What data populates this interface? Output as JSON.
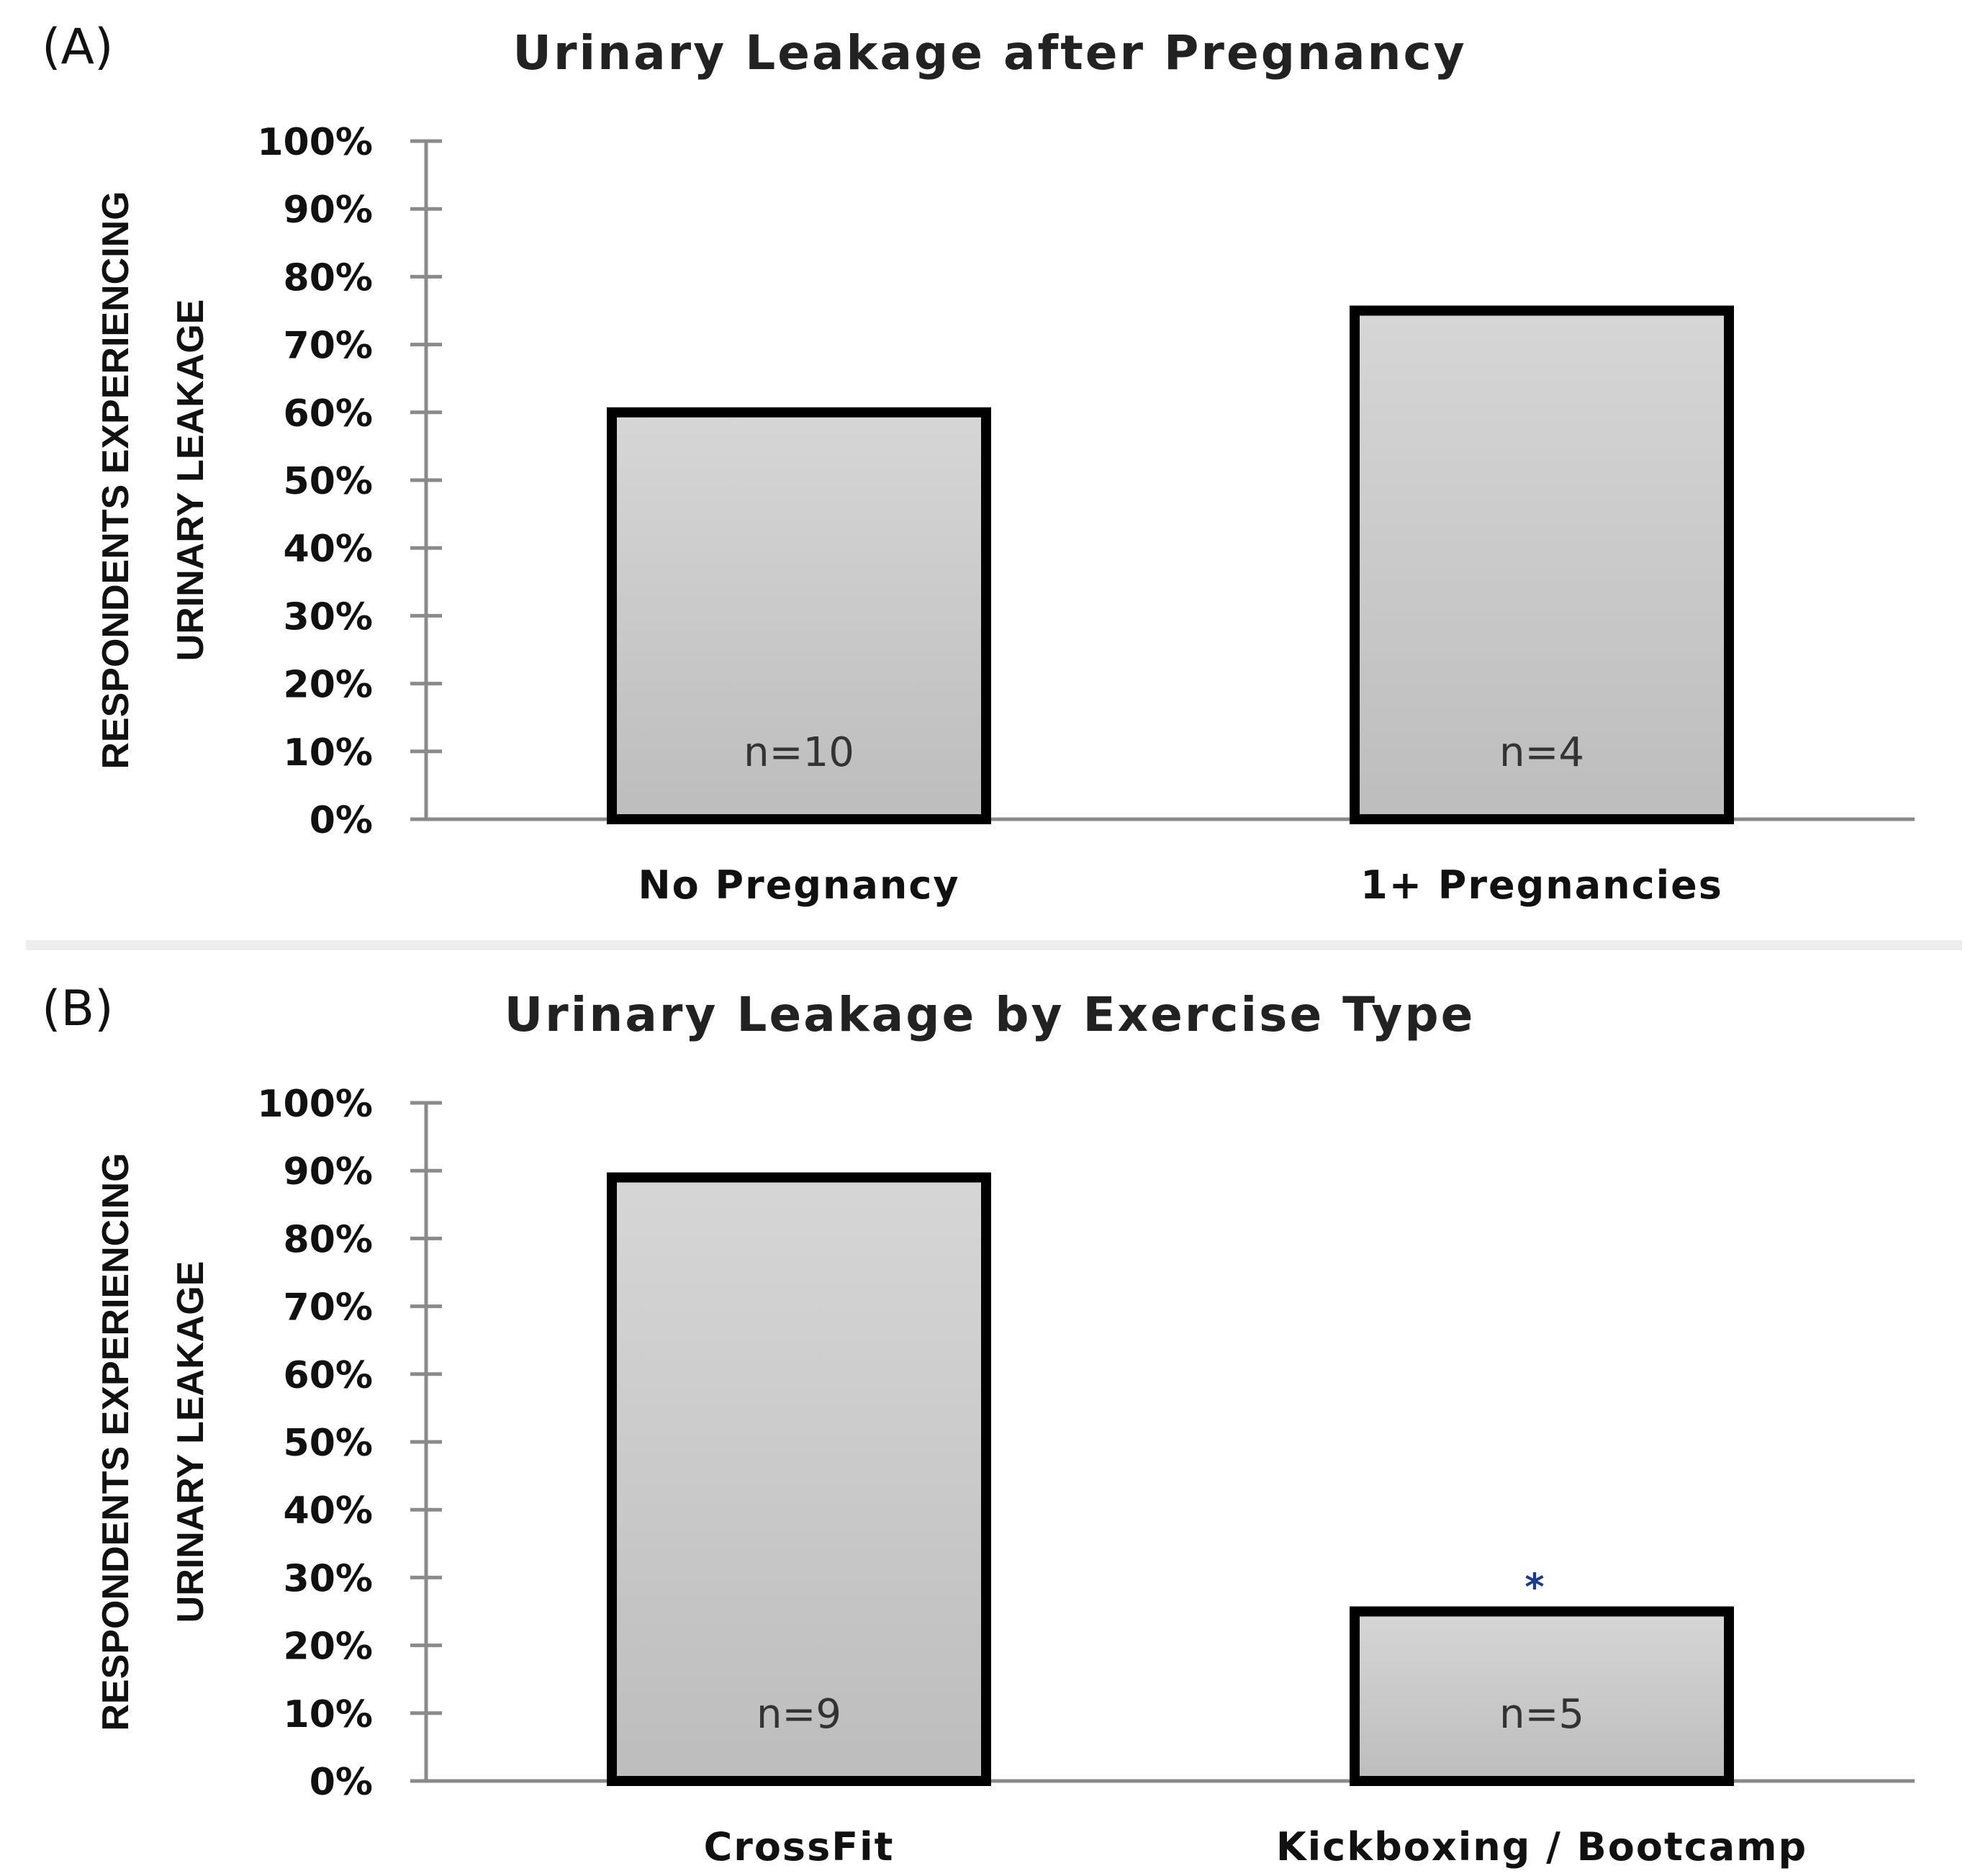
{
  "chart_data": [
    {
      "panel_label": "(A)",
      "type": "bar",
      "title": "Urinary Leakage after Pregnancy",
      "ylabel_lines": [
        "RESPONDENTS EXPERIENCING",
        "URINARY LEAKAGE"
      ],
      "xlabel": "",
      "ylim": [
        0,
        100
      ],
      "yticks": [
        0,
        10,
        20,
        30,
        40,
        50,
        60,
        70,
        80,
        90,
        100
      ],
      "ytick_labels": [
        "0%",
        "10%",
        "20%",
        "30%",
        "40%",
        "50%",
        "60%",
        "70%",
        "80%",
        "90%",
        "100%"
      ],
      "categories": [
        "No Pregnancy",
        "1+ Pregnancies"
      ],
      "values": [
        60,
        75
      ],
      "bar_labels": [
        "n=10",
        "n=4"
      ],
      "annotations": [
        "",
        ""
      ],
      "grid": false,
      "legend": "none"
    },
    {
      "panel_label": "(B)",
      "type": "bar",
      "title": "Urinary Leakage by Exercise Type",
      "ylabel_lines": [
        "RESPONDENTS EXPERIENCING",
        "URINARY LEAKAGE"
      ],
      "xlabel": "",
      "ylim": [
        0,
        100
      ],
      "yticks": [
        0,
        10,
        20,
        30,
        40,
        50,
        60,
        70,
        80,
        90,
        100
      ],
      "ytick_labels": [
        "0%",
        "10%",
        "20%",
        "30%",
        "40%",
        "50%",
        "60%",
        "70%",
        "80%",
        "90%",
        "100%"
      ],
      "categories": [
        "CrossFit",
        "Kickboxing / Bootcamp"
      ],
      "values": [
        89,
        25
      ],
      "bar_labels": [
        "n=9",
        "n=5"
      ],
      "annotations": [
        "",
        "*"
      ],
      "grid": false,
      "legend": "none"
    }
  ]
}
